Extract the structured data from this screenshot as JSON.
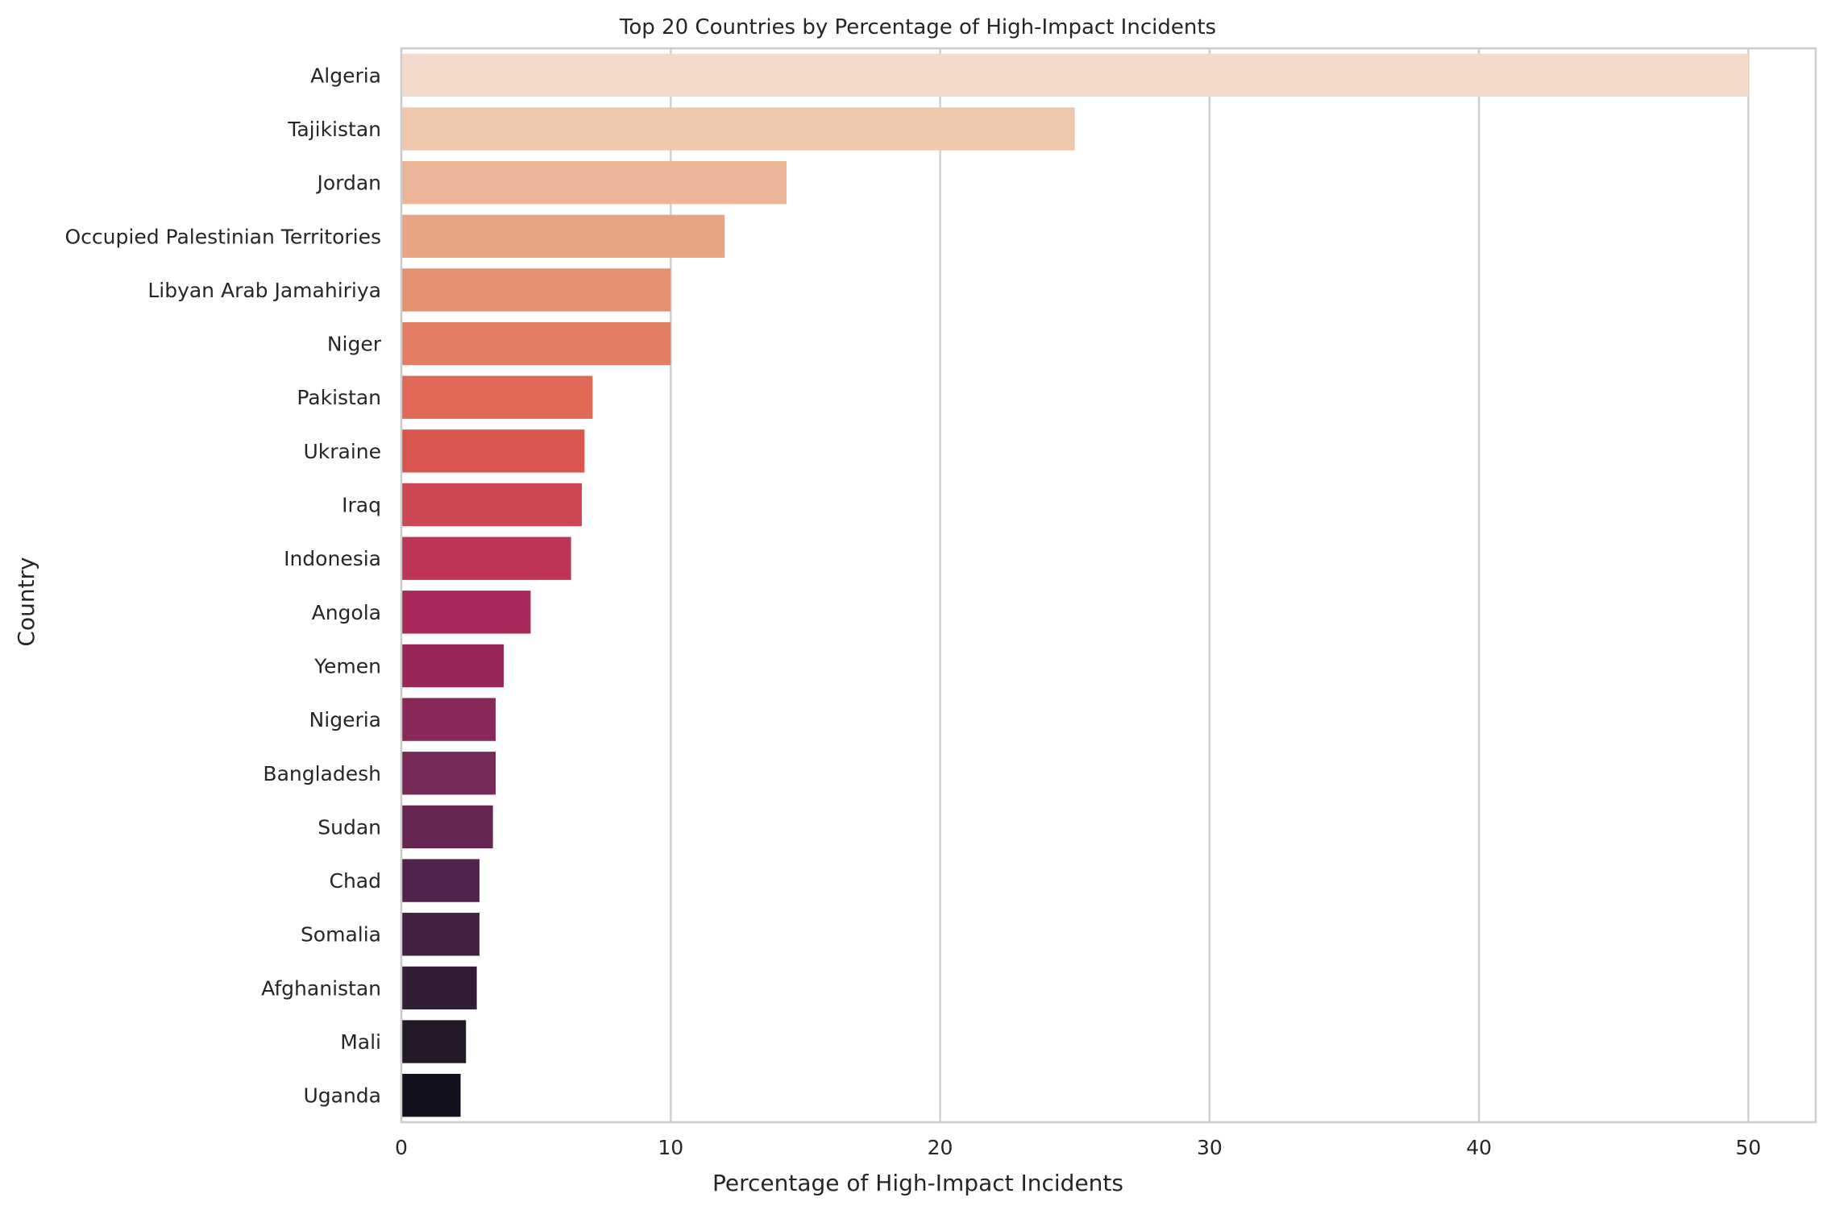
{
  "chart_data": {
    "type": "bar",
    "orientation": "horizontal",
    "title": "Top 20 Countries by Percentage of High-Impact Incidents",
    "xlabel": "Percentage of High-Impact Incidents",
    "ylabel": "Country",
    "xlim": [
      0,
      52.5
    ],
    "xticks": [
      "0",
      "10",
      "20",
      "30",
      "40",
      "50"
    ],
    "xtick_values": [
      0,
      10,
      20,
      30,
      40,
      50
    ],
    "grid": true,
    "categories": [
      "Algeria",
      "Tajikistan",
      "Jordan",
      "Occupied Palestinian Territories",
      "Libyan Arab Jamahiriya",
      "Niger",
      "Pakistan",
      "Ukraine",
      "Iraq",
      "Indonesia",
      "Angola",
      "Yemen",
      "Nigeria",
      "Bangladesh",
      "Sudan",
      "Chad",
      "Somalia",
      "Afghanistan",
      "Mali",
      "Uganda"
    ],
    "values": [
      50.0,
      25.0,
      14.3,
      12.0,
      10.0,
      10.0,
      7.1,
      6.8,
      6.7,
      6.3,
      4.8,
      3.8,
      3.5,
      3.5,
      3.4,
      2.9,
      2.9,
      2.8,
      2.4,
      2.2
    ],
    "colors": [
      "#f3dbcc",
      "#efc7ac",
      "#ebb597",
      "#e8a384",
      "#e69072",
      "#e27c63",
      "#df6856",
      "#d9564f",
      "#cc4751",
      "#bc3456",
      "#a8285b",
      "#99265b",
      "#892959",
      "#772958",
      "#652752",
      "#52234a",
      "#422141",
      "#321d37",
      "#231929",
      "#130f1f"
    ],
    "spine_color": "#cccccc",
    "grid_color": "#d0d0d0"
  }
}
